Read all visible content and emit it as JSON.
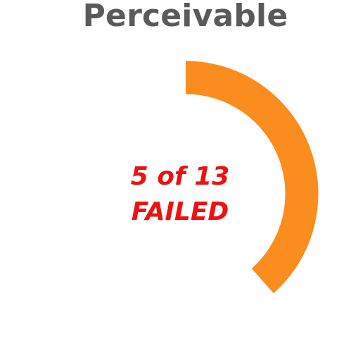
{
  "title": "Perceivable",
  "center_label": {
    "line1": "5 of 13",
    "line2": "FAILED"
  },
  "colors": {
    "arc": "#fb8c1e",
    "title": "#5a5a5a",
    "label": "#ee1111"
  },
  "chart_data": {
    "type": "pie",
    "title": "Perceivable",
    "failed": 5,
    "total": 13,
    "values": [
      5,
      8
    ],
    "categories": [
      "FAILED",
      ""
    ],
    "style": "donut-gauge",
    "start_angle": "top",
    "direction": "clockwise"
  }
}
